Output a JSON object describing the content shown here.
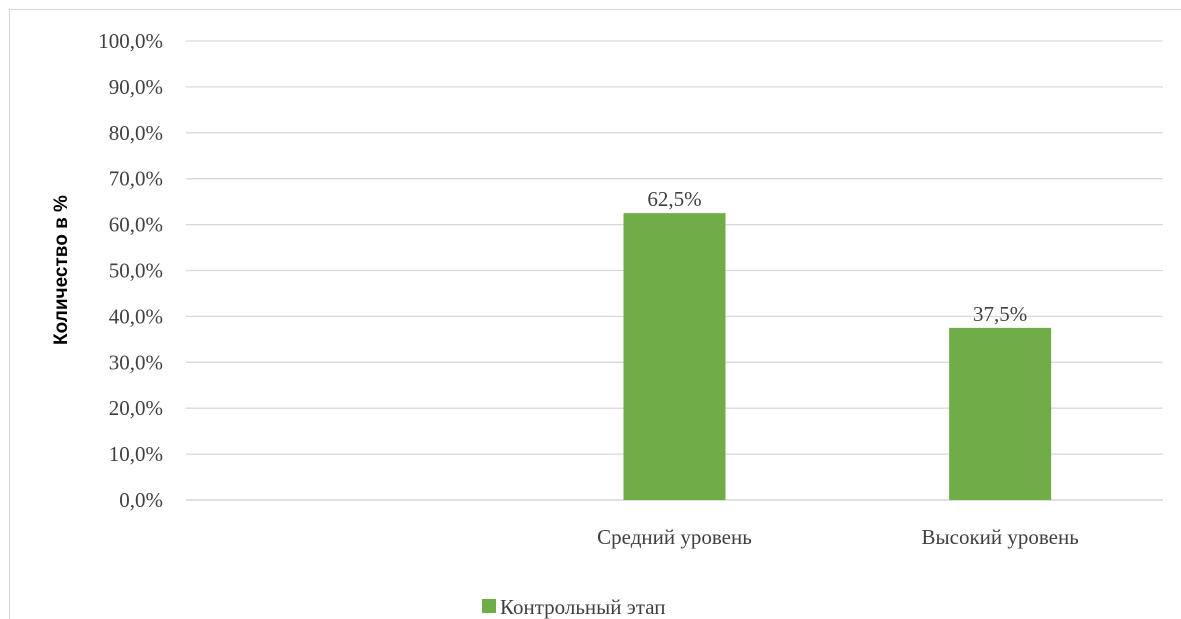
{
  "chart_data": {
    "type": "bar",
    "categories": [
      "",
      "Средний уровень",
      "Высокий уровень"
    ],
    "series": [
      {
        "name": "Контрольный этап",
        "values": [
          null,
          62.5,
          37.5
        ],
        "data_labels": [
          "",
          "62,5%",
          "37,5%"
        ],
        "color": "#70ad47"
      }
    ],
    "ylabel": "Количество в %",
    "xlabel": "",
    "ylim": [
      0,
      100
    ],
    "y_ticks": [
      0,
      10,
      20,
      30,
      40,
      50,
      60,
      70,
      80,
      90,
      100
    ],
    "y_tick_labels": [
      "0,0%",
      "10,0%",
      "20,0%",
      "30,0%",
      "40,0%",
      "50,0%",
      "60,0%",
      "70,0%",
      "80,0%",
      "90,0%",
      "100,0%"
    ],
    "grid": true,
    "legend_position": "bottom"
  },
  "colors": {
    "bar": "#70ad47",
    "grid": "#d9d9d9",
    "text": "#404040"
  }
}
